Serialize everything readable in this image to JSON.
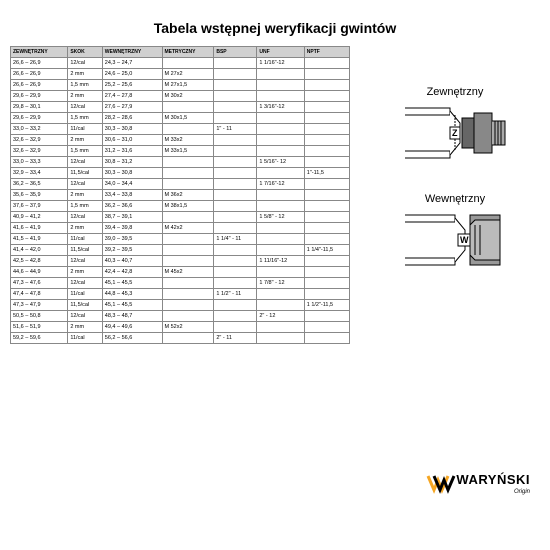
{
  "title": "Tabela wstępnej weryfikacji gwintów",
  "columns": [
    "ZEWNĘTRZNY",
    "SKOK",
    "WEWNĘTRZNY",
    "METRYCZNY",
    "BSP",
    "UNF",
    "NPTF"
  ],
  "rows": [
    [
      "26,6 – 26,9",
      "12/cal",
      "24,3 – 24,7",
      "",
      "",
      "1 1/16\"-12",
      ""
    ],
    [
      "26,6 – 26,9",
      "2 mm",
      "24,6 – 25,0",
      "M 27x2",
      "",
      "",
      ""
    ],
    [
      "26,6 – 26,9",
      "1,5 mm",
      "25,2 – 25,6",
      "M 27x1,5",
      "",
      "",
      ""
    ],
    [
      "29,6 – 29,9",
      "2 mm",
      "27,4 – 27,8",
      "M 30x2",
      "",
      "",
      ""
    ],
    [
      "29,8 – 30,1",
      "12/cal",
      "27,6 – 27,9",
      "",
      "",
      "1 3/16\"-12",
      ""
    ],
    [
      "29,6 – 29,9",
      "1,5 mm",
      "28,2 – 28,6",
      "M 30x1,5",
      "",
      "",
      ""
    ],
    [
      "33,0 – 33,2",
      "11/cal",
      "30,3 – 30,8",
      "",
      "1\" - 11",
      "",
      ""
    ],
    [
      "32,6 – 32,9",
      "2 mm",
      "30,6 – 31,0",
      "M 33x2",
      "",
      "",
      ""
    ],
    [
      "32,6 – 32,9",
      "1,5 mm",
      "31,2 – 31,6",
      "M 33x1,5",
      "",
      "",
      ""
    ],
    [
      "33,0 – 33,3",
      "12/cal",
      "30,8 – 31,2",
      "",
      "",
      "1 5/16\"- 12",
      ""
    ],
    [
      "32,9 – 33,4",
      "11,5/cal",
      "30,3 – 30,8",
      "",
      "",
      "",
      "1\"-11,5"
    ],
    [
      "36,2 – 36,5",
      "12/cal",
      "34,0 – 34,4",
      "",
      "",
      "1 7/16\"-12",
      ""
    ],
    [
      "35,6 – 35,9",
      "2 mm",
      "33,4 – 33,8",
      "M 36x2",
      "",
      "",
      ""
    ],
    [
      "37,6 – 37,9",
      "1,5 mm",
      "36,2 – 36,6",
      "M 38x1,5",
      "",
      "",
      ""
    ],
    [
      "40,9 – 41,2",
      "12/cal",
      "38,7 – 39,1",
      "",
      "",
      "1 5/8\" - 12",
      ""
    ],
    [
      "41,6 – 41,9",
      "2 mm",
      "39,4 – 39,8",
      "M 42x2",
      "",
      "",
      ""
    ],
    [
      "41,5 – 41,9",
      "11/cal",
      "39,0 – 39,5",
      "",
      "1 1/4\" - 11",
      "",
      ""
    ],
    [
      "41,4 – 42,0",
      "11,5/cal",
      "39,2 – 39,5",
      "",
      "",
      "",
      "1 1/4\"-11,5"
    ],
    [
      "42,5 – 42,8",
      "12/cal",
      "40,3 – 40,7",
      "",
      "",
      "1 11/16\"-12",
      ""
    ],
    [
      "44,6 – 44,9",
      "2 mm",
      "42,4 – 42,8",
      "M 45x2",
      "",
      "",
      ""
    ],
    [
      "47,3 – 47,6",
      "12/cal",
      "45,1 – 45,5",
      "",
      "",
      "1 7/8\" - 12",
      ""
    ],
    [
      "47,4 – 47,8",
      "11/cal",
      "44,8 – 45,3",
      "",
      "1 1/2\" - 11",
      "",
      ""
    ],
    [
      "47,3 – 47,9",
      "11,5/cal",
      "45,1 – 45,5",
      "",
      "",
      "",
      "1 1/2\"-11,5"
    ],
    [
      "50,5 – 50,8",
      "12/cal",
      "48,3 – 48,7",
      "",
      "",
      "2\" - 12",
      ""
    ],
    [
      "51,6 – 51,9",
      "2 mm",
      "49,4 – 49,6",
      "M 52x2",
      "",
      "",
      ""
    ],
    [
      "59,2 – 59,6",
      "11/cal",
      "56,2 – 56,6",
      "",
      "2\" - 11",
      "",
      ""
    ]
  ],
  "side": {
    "label_ext": "Zewnętrzny",
    "label_int": "Wewnętrzny",
    "z": "Z",
    "w": "W"
  },
  "logo": {
    "name": "WARYŃSKI",
    "sub": "Origin"
  },
  "colors": {
    "header_bg": "#d0d0d0",
    "border": "#888888",
    "logo_accent": "#f5a623"
  }
}
